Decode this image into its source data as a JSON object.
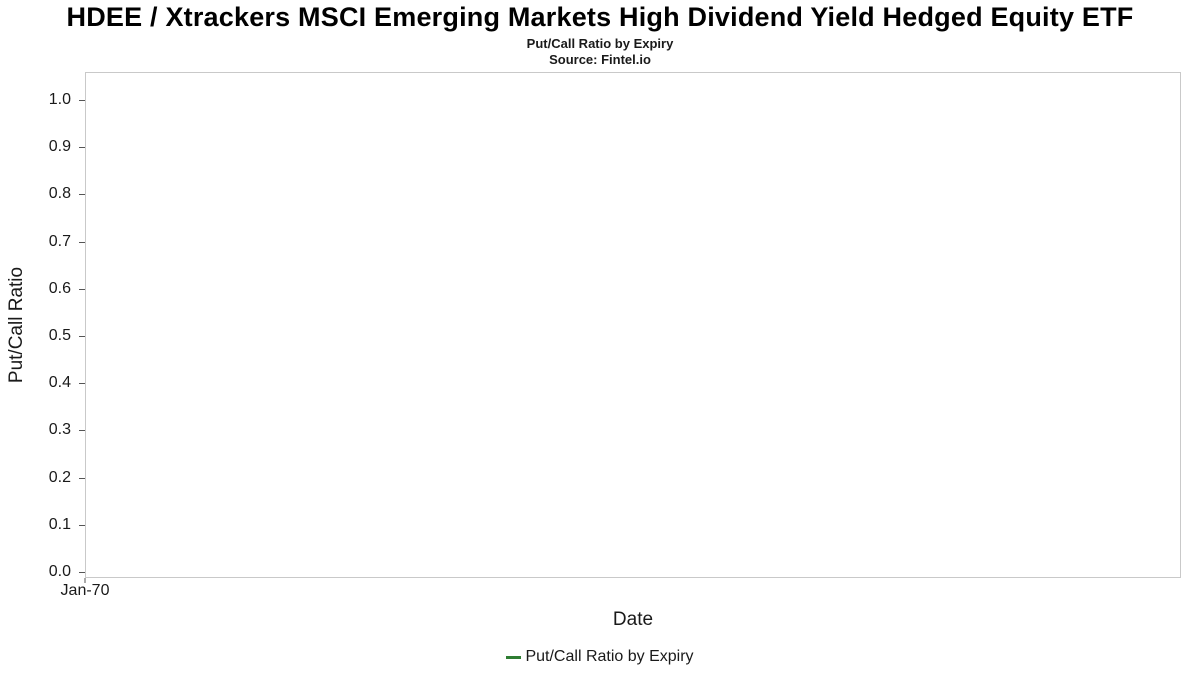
{
  "header": {
    "title": "HDEE / Xtrackers MSCI Emerging Markets High Dividend Yield Hedged Equity ETF",
    "subtitle": "Put/Call Ratio by Expiry",
    "source": "Source: Fintel.io"
  },
  "chart_data": {
    "type": "line",
    "title": "Put/Call Ratio by Expiry",
    "xlabel": "Date",
    "ylabel": "Put/Call Ratio",
    "ylim": [
      0.0,
      1.0
    ],
    "yticks": [
      0.0,
      0.1,
      0.2,
      0.3,
      0.4,
      0.5,
      0.6,
      0.7,
      0.8,
      0.9,
      1.0
    ],
    "ytick_labels": [
      "0.0",
      "0.1",
      "0.2",
      "0.3",
      "0.4",
      "0.5",
      "0.6",
      "0.7",
      "0.8",
      "0.9",
      "1.0"
    ],
    "xticks": [
      "Jan-70"
    ],
    "grid": false,
    "legend_position": "bottom",
    "series": [
      {
        "name": "Put/Call Ratio by Expiry",
        "color": "#2e7d32",
        "x": [],
        "values": []
      }
    ]
  }
}
